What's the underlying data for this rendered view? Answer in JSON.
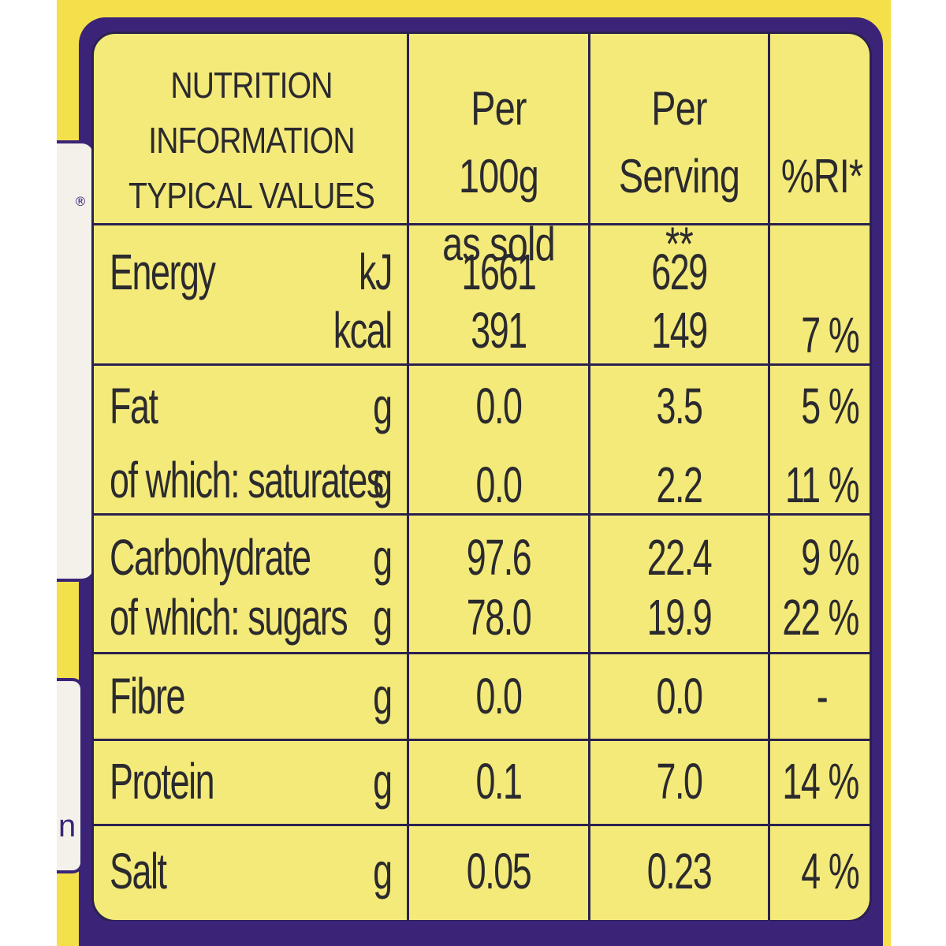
{
  "header": {
    "label_lines": [
      "NUTRITION",
      "INFORMATION",
      "TYPICAL VALUES"
    ],
    "col_100g": [
      "Per 100g",
      "as sold"
    ],
    "col_serving": [
      "Per",
      "Serving **"
    ],
    "col_ri": "%RI*"
  },
  "side": {
    "reg_mark": "®",
    "edge_letter": "n"
  },
  "rows": [
    {
      "label": "Energy",
      "unit": "kJ",
      "per100": "1661",
      "serving": "629",
      "ri": ""
    },
    {
      "label": "",
      "unit": "kcal",
      "per100": "391",
      "serving": "149",
      "ri": "7 %"
    },
    {
      "label": "Fat",
      "unit": "g",
      "per100": "0.0",
      "serving": "3.5",
      "ri": "5 %"
    },
    {
      "label": "of which: saturates",
      "unit": "g",
      "per100": "0.0",
      "serving": "2.2",
      "ri": "11 %"
    },
    {
      "label": "Carbohydrate",
      "unit": "g",
      "per100": "97.6",
      "serving": "22.4",
      "ri": "9 %"
    },
    {
      "label": "of which: sugars",
      "unit": "g",
      "per100": "78.0",
      "serving": "19.9",
      "ri": "22 %"
    },
    {
      "label": "Fibre",
      "unit": "g",
      "per100": "0.0",
      "serving": "0.0",
      "ri": "-"
    },
    {
      "label": "Protein",
      "unit": "g",
      "per100": "0.1",
      "serving": "7.0",
      "ri": "14 %"
    },
    {
      "label": "Salt",
      "unit": "g",
      "per100": "0.05",
      "serving": "0.23",
      "ri": "4 %"
    }
  ],
  "colors": {
    "panel": "#f4ea7a",
    "pack_yellow": "#f4e04a",
    "purple": "#3b2478",
    "ink": "#2b2a2e"
  }
}
